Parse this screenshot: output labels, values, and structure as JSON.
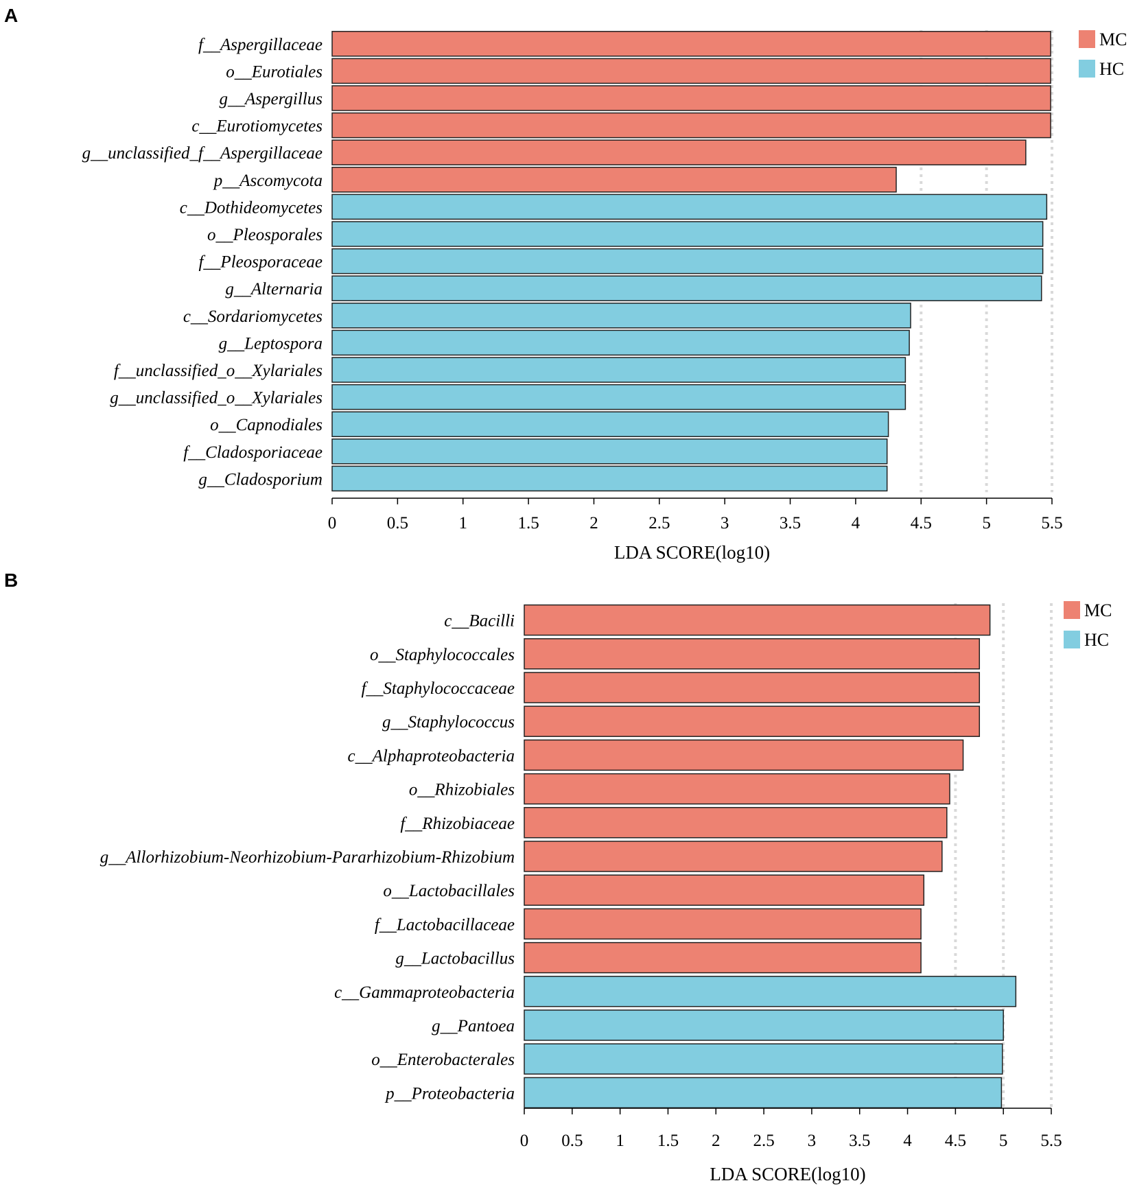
{
  "chart_data": [
    {
      "panel": "A",
      "type": "bar",
      "orientation": "horizontal",
      "categories": [
        "f__Aspergillaceae",
        "o__Eurotiales",
        "g__Aspergillus",
        "c__Eurotiomycetes",
        "g__unclassified_f__Aspergillaceae",
        "p__Ascomycota",
        "c__Dothideomycetes",
        "o__Pleosporales",
        "f__Pleosporaceae",
        "g__Alternaria",
        "c__Sordariomycetes",
        "g__Leptospora",
        "f__unclassified_o__Xylariales",
        "g__unclassified_o__Xylariales",
        "o__Capnodiales",
        "f__Cladosporiaceae",
        "g__Cladosporium"
      ],
      "values": [
        5.49,
        5.49,
        5.49,
        5.49,
        5.3,
        4.31,
        5.46,
        5.43,
        5.43,
        5.42,
        4.42,
        4.41,
        4.38,
        4.38,
        4.25,
        4.24,
        4.24
      ],
      "groups": [
        "MC",
        "MC",
        "MC",
        "MC",
        "MC",
        "MC",
        "HC",
        "HC",
        "HC",
        "HC",
        "HC",
        "HC",
        "HC",
        "HC",
        "HC",
        "HC",
        "HC"
      ],
      "xlabel": "LDA SCORE(log10)",
      "ylabel": "",
      "xlim": [
        0,
        5.5
      ],
      "xticks": [
        "0",
        "0.5",
        "1",
        "1.5",
        "2",
        "2.5",
        "3",
        "3.5",
        "4",
        "4.5",
        "5",
        "5.5"
      ],
      "gridlines": [
        4.5,
        5,
        5.5
      ],
      "legend": [
        {
          "name": "MC",
          "color": "#ed8272"
        },
        {
          "name": "HC",
          "color": "#82cde0"
        }
      ],
      "legend_position": "top-right"
    },
    {
      "panel": "B",
      "type": "bar",
      "orientation": "horizontal",
      "categories": [
        "c__Bacilli",
        "o__Staphylococcales",
        "f__Staphylococcaceae",
        "g__Staphylococcus",
        "c__Alphaproteobacteria",
        "o__Rhizobiales",
        "f__Rhizobiaceae",
        "g__Allorhizobium-Neorhizobium-Pararhizobium-Rhizobium",
        "o__Lactobacillales",
        "f__Lactobacillaceae",
        "g__Lactobacillus",
        "c__Gammaproteobacteria",
        "g__Pantoea",
        "o__Enterobacterales",
        "p__Proteobacteria"
      ],
      "values": [
        4.86,
        4.75,
        4.75,
        4.75,
        4.58,
        4.44,
        4.41,
        4.36,
        4.17,
        4.14,
        4.14,
        5.13,
        5.0,
        4.99,
        4.98
      ],
      "groups": [
        "MC",
        "MC",
        "MC",
        "MC",
        "MC",
        "MC",
        "MC",
        "MC",
        "MC",
        "MC",
        "MC",
        "HC",
        "HC",
        "HC",
        "HC"
      ],
      "xlabel": "LDA SCORE(log10)",
      "ylabel": "",
      "xlim": [
        0,
        5.5
      ],
      "xticks": [
        "0",
        "0.5",
        "1",
        "1.5",
        "2",
        "2.5",
        "3",
        "3.5",
        "4",
        "4.5",
        "5",
        "5.5"
      ],
      "gridlines": [
        4.5,
        5,
        5.5
      ],
      "legend": [
        {
          "name": "MC",
          "color": "#ed8272"
        },
        {
          "name": "HC",
          "color": "#82cde0"
        }
      ],
      "legend_position": "top-right"
    }
  ]
}
